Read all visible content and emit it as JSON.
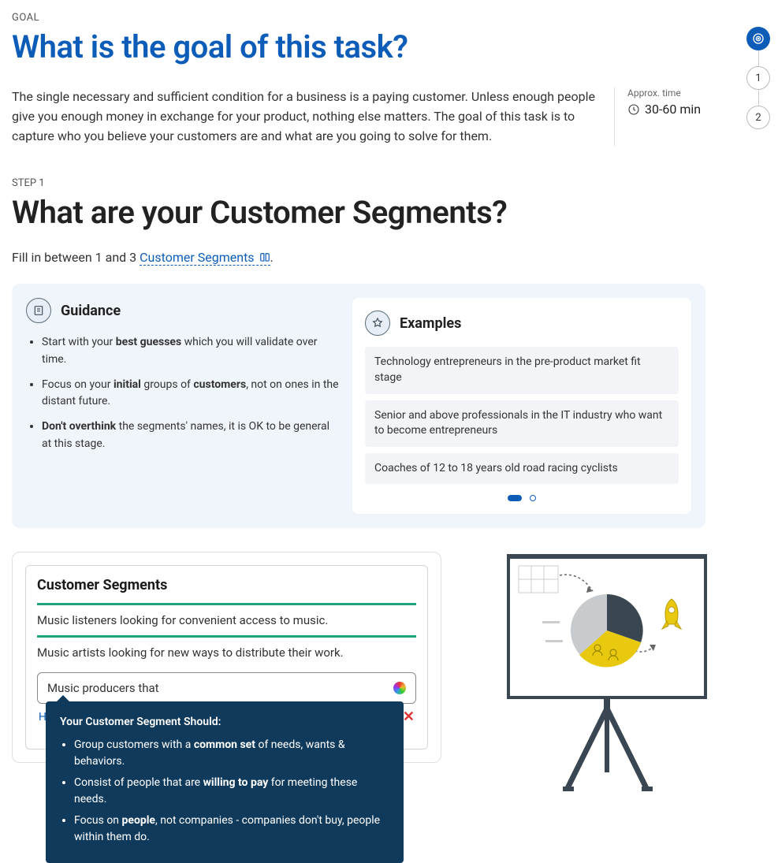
{
  "eyebrow": "GOAL",
  "goal_title": "What is the goal of this task?",
  "intro": "The single necessary and sufficient condition for a business is a paying customer. Unless enough people give you enough money in exchange for your product, nothing else matters. The goal of this task is to capture who you believe your customers are and what are you going to solve for them.",
  "time_label": "Approx. time",
  "time_value": "30-60 min",
  "progress": {
    "step1": "1",
    "step2": "2"
  },
  "step_eyebrow": "STEP 1",
  "step_title": "What are your Customer Segments?",
  "instruction_pre": "Fill in between 1 and 3 ",
  "instruction_term": "Customer Segments",
  "guidance_title": "Guidance",
  "guidance": [
    {
      "pre": "Start with your ",
      "b": "best guesses",
      "post": " which you will validate over time."
    },
    {
      "pre": "Focus on your ",
      "b": "initial",
      "mid": " groups of ",
      "b2": "customers",
      "post": ", not on ones in the distant future."
    },
    {
      "pre": "",
      "b": "Don't overthink",
      "post": " the segments' names, it is OK to be general at this stage."
    }
  ],
  "examples_title": "Examples",
  "examples": [
    "Technology entrepreneurs in the pre-product market fit stage",
    "Senior and above professionals in the IT industry who want to become entrepreneurs",
    "Coaches of 12 to 18 years old road racing cyclists"
  ],
  "segments_card_title": "Customer Segments",
  "segments": [
    "Music listeners looking for convenient access to music.",
    "Music artists looking for new ways to distribute their work."
  ],
  "draft_value": "Music producers that",
  "hints_label": "Hints",
  "tooltip_title": "Your Customer Segment Should:",
  "tooltip_items": [
    {
      "pre": "Group customers with a ",
      "b": "common set",
      "post": " of needs, wants & behaviors."
    },
    {
      "pre": "Consist of people that are ",
      "b": "willing to pay",
      "post": " for meeting these needs."
    },
    {
      "pre": "Focus on ",
      "b": "people",
      "post": ", not companies - companies don't buy, people within them do."
    }
  ],
  "colors": {
    "primary": "#0d5db8",
    "teal": "#1fa37a",
    "tooltip_bg": "#103a5c",
    "card_bg": "#f0f5fb"
  }
}
